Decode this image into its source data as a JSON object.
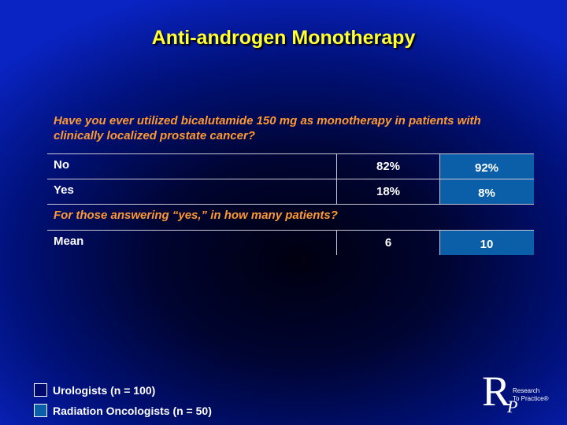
{
  "slide": {
    "title": "Anti-androgen Monotherapy"
  },
  "question": "Have you ever utilized bicalutamide 150 mg as monotherapy in patients with clinically localized prostate cancer?",
  "table": {
    "rows": [
      {
        "label": "No",
        "urologists": "82%",
        "radiation_oncologists": "92%"
      },
      {
        "label": "Yes",
        "urologists": "18%",
        "radiation_oncologists": "8%"
      }
    ],
    "followup_question": "For those answering “yes,” in how many patients?",
    "mean_row": {
      "label": "Mean",
      "urologists": "6",
      "radiation_oncologists": "10"
    }
  },
  "legend": [
    {
      "label": "Urologists  (n = 100)",
      "color": "#000a6e"
    },
    {
      "label": "Radiation Oncologists  (n = 50)",
      "color": "#0a5fa8"
    }
  ],
  "logo": {
    "letters": [
      "R",
      "P"
    ],
    "text_line1": "Research",
    "text_line2": "To Practice®"
  },
  "colors": {
    "title": "#ffff33",
    "question": "#ff9933",
    "teal_column": "#0a5fa8"
  }
}
